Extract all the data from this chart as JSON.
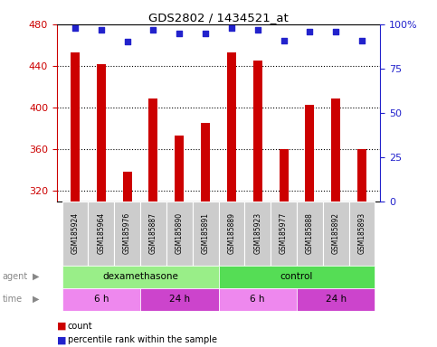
{
  "title": "GDS2802 / 1434521_at",
  "samples": [
    "GSM185924",
    "GSM185964",
    "GSM185976",
    "GSM185887",
    "GSM185890",
    "GSM185891",
    "GSM185889",
    "GSM185923",
    "GSM185977",
    "GSM185888",
    "GSM185892",
    "GSM185893"
  ],
  "counts": [
    453,
    442,
    338,
    409,
    373,
    385,
    453,
    445,
    360,
    403,
    409,
    360
  ],
  "percentiles": [
    98,
    97,
    90,
    97,
    95,
    95,
    98,
    97,
    91,
    96,
    96,
    91
  ],
  "ylim_left": [
    310,
    480
  ],
  "ylim_right": [
    0,
    100
  ],
  "yticks_left": [
    320,
    360,
    400,
    440,
    480
  ],
  "yticks_right": [
    0,
    25,
    50,
    75,
    100
  ],
  "bar_color": "#cc0000",
  "dot_color": "#2222cc",
  "agent_groups": [
    {
      "label": "dexamethasone",
      "start": 0,
      "end": 6,
      "color": "#99ee88"
    },
    {
      "label": "control",
      "start": 6,
      "end": 12,
      "color": "#55dd55"
    }
  ],
  "time_groups": [
    {
      "label": "6 h",
      "start": 0,
      "end": 3,
      "color": "#ee88ee"
    },
    {
      "label": "24 h",
      "start": 3,
      "end": 6,
      "color": "#cc44cc"
    },
    {
      "label": "6 h",
      "start": 6,
      "end": 9,
      "color": "#ee88ee"
    },
    {
      "label": "24 h",
      "start": 9,
      "end": 12,
      "color": "#cc44cc"
    }
  ],
  "yaxis_left_color": "#cc0000",
  "yaxis_right_color": "#2222cc",
  "legend_count_color": "#cc0000",
  "legend_dot_color": "#2222cc",
  "tick_label_bg": "#cccccc",
  "n_samples": 12,
  "bar_width": 0.35,
  "figsize": [
    4.83,
    3.84
  ],
  "dpi": 100
}
